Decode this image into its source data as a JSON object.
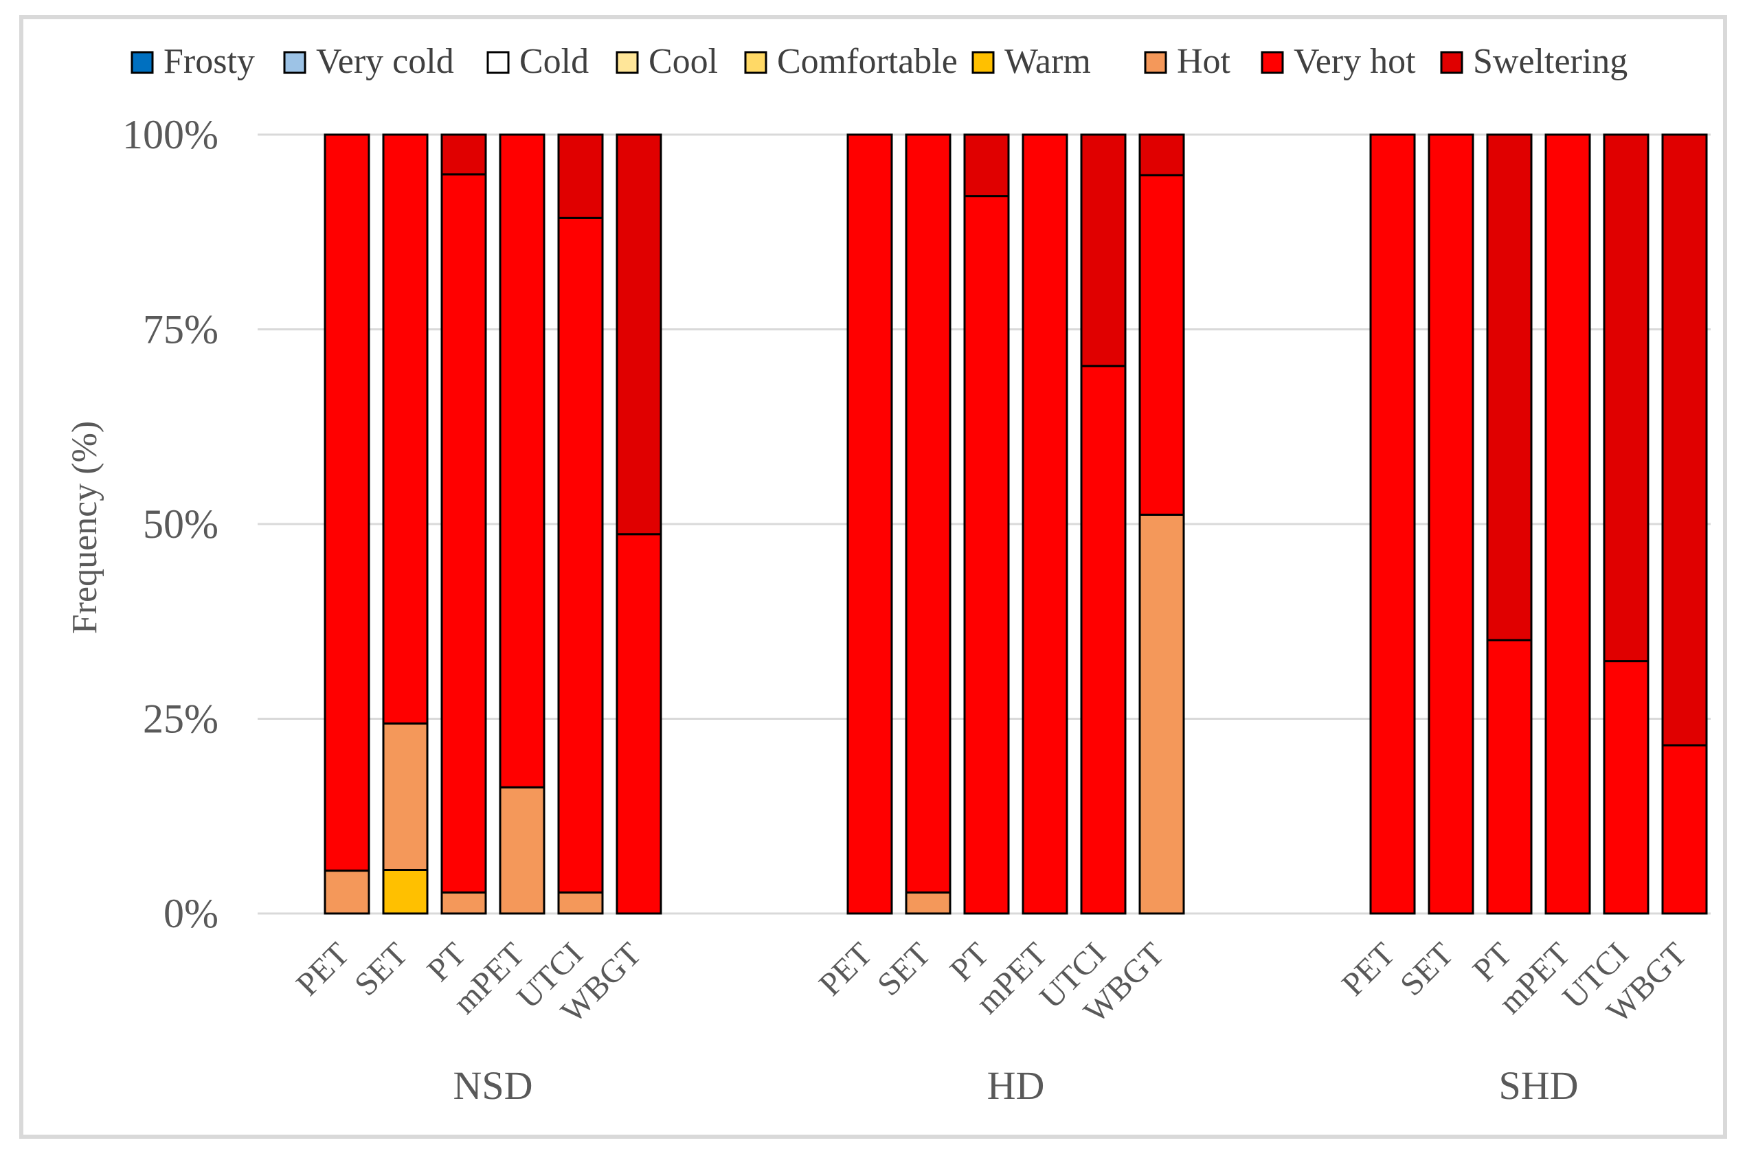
{
  "chart_data": {
    "type": "bar",
    "stacked": true,
    "title": "",
    "xlabel": "",
    "ylabel": "Frequency (%)",
    "ylim": [
      0,
      100
    ],
    "ytick_labels": [
      "0%",
      "25%",
      "50%",
      "75%",
      "100%"
    ],
    "yticks": [
      0,
      25,
      50,
      75,
      100
    ],
    "grid": true,
    "legend_position": "top",
    "groups": [
      {
        "name": "NSD",
        "categories": [
          "PET",
          "SET",
          "PT",
          "mPET",
          "UTCI",
          "WBGT"
        ]
      },
      {
        "name": "HD",
        "categories": [
          "PET",
          "SET",
          "PT",
          "mPET",
          "UTCI",
          "WBGT"
        ]
      },
      {
        "name": "SHD",
        "categories": [
          "PET",
          "SET",
          "PT",
          "mPET",
          "UTCI",
          "WBGT"
        ]
      }
    ],
    "series": [
      {
        "name": "Frosty",
        "color": "#0070c0",
        "values": [
          0,
          0,
          0,
          0,
          0,
          0,
          0,
          0,
          0,
          0,
          0,
          0,
          0,
          0,
          0,
          0,
          0,
          0
        ]
      },
      {
        "name": "Very cold",
        "color": "#9dc3e6",
        "values": [
          0,
          0,
          0,
          0,
          0,
          0,
          0,
          0,
          0,
          0,
          0,
          0,
          0,
          0,
          0,
          0,
          0,
          0
        ]
      },
      {
        "name": "Cold",
        "color": "#ffffff",
        "values": [
          0,
          0,
          0,
          0,
          0,
          0,
          0,
          0,
          0,
          0,
          0,
          0,
          0,
          0,
          0,
          0,
          0,
          0
        ]
      },
      {
        "name": "Cool",
        "color": "#ffe699",
        "values": [
          0,
          0,
          0,
          0,
          0,
          0,
          0,
          0,
          0,
          0,
          0,
          0,
          0,
          0,
          0,
          0,
          0,
          0
        ]
      },
      {
        "name": "Comfortable",
        "color": "#ffd966",
        "values": [
          0,
          0,
          0,
          0,
          0,
          0,
          0,
          0,
          0,
          0,
          0,
          0,
          0,
          0,
          0,
          0,
          0,
          0
        ]
      },
      {
        "name": "Warm",
        "color": "#ffc000",
        "values": [
          0,
          5.6,
          0,
          0,
          0,
          0,
          0,
          0,
          0,
          0,
          0,
          0,
          0,
          0,
          0,
          0,
          0,
          0
        ]
      },
      {
        "name": "Hot",
        "color": "#f4985a",
        "values": [
          5.5,
          18.8,
          2.7,
          16.2,
          2.7,
          0,
          0,
          2.7,
          0,
          0,
          0,
          51.2,
          0,
          0,
          0,
          0,
          0,
          0
        ]
      },
      {
        "name": "Very hot",
        "color": "#ff0000",
        "values": [
          94.5,
          75.6,
          92.2,
          83.8,
          86.6,
          48.7,
          100,
          97.3,
          92.1,
          100,
          70.3,
          43.6,
          100,
          100,
          35.1,
          100,
          32.4,
          21.6
        ]
      },
      {
        "name": "Sweltering",
        "color": "#e00000",
        "values": [
          0,
          0,
          5.1,
          0,
          10.7,
          51.3,
          0,
          0,
          7.9,
          0,
          29.7,
          5.2,
          0,
          0,
          64.9,
          0,
          67.6,
          78.4
        ]
      }
    ]
  }
}
